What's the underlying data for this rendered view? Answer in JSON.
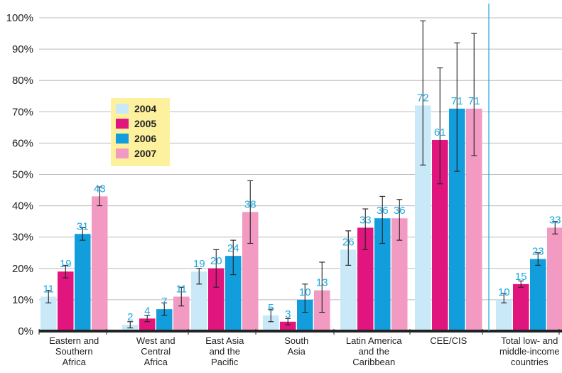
{
  "chart_data": {
    "type": "bar",
    "categories": [
      [
        "Eastern and",
        "Southern",
        "Africa"
      ],
      [
        "West and",
        "Central",
        "Africa"
      ],
      [
        "East Asia",
        "and the",
        "Pacific"
      ],
      [
        "South",
        "Asia"
      ],
      [
        "Latin America",
        "and the",
        "Caribbean"
      ],
      [
        "CEE/CIS"
      ],
      [
        "Total low- and",
        "middle-income",
        "countries"
      ]
    ],
    "series": [
      {
        "name": "2004",
        "color": "#c9e9f8",
        "values": [
          11,
          2,
          19,
          5,
          26,
          72,
          10
        ],
        "err_low": [
          9,
          1,
          15,
          3,
          21,
          53,
          9
        ],
        "err_high": [
          13,
          3,
          20,
          7,
          32,
          99,
          12
        ]
      },
      {
        "name": "2005",
        "color": "#e0157e",
        "values": [
          19,
          4,
          20,
          3,
          33,
          61,
          15
        ],
        "err_low": [
          17,
          3,
          14,
          2,
          26,
          47,
          14
        ],
        "err_high": [
          21,
          5,
          26,
          4,
          39,
          84,
          16
        ]
      },
      {
        "name": "2006",
        "color": "#129ddc",
        "values": [
          31,
          7,
          24,
          10,
          36,
          71,
          23
        ],
        "err_low": [
          29,
          5,
          18,
          6,
          28,
          51,
          21
        ],
        "err_high": [
          33,
          9,
          29,
          15,
          43,
          92,
          25
        ]
      },
      {
        "name": "2007",
        "color": "#f29ac2",
        "values": [
          43,
          11,
          38,
          13,
          36,
          71,
          33
        ],
        "err_low": [
          40,
          8,
          28,
          6,
          29,
          56,
          31
        ],
        "err_high": [
          46,
          14,
          48,
          22,
          42,
          95,
          35
        ]
      }
    ],
    "y_ticks": [
      "0%",
      "10%",
      "20%",
      "30%",
      "40%",
      "50%",
      "60%",
      "70%",
      "80%",
      "90%",
      "100%"
    ],
    "ylim": [
      0,
      100
    ],
    "grid": "horizontal",
    "legend_position": "upper-left",
    "separator_before_last_category": true,
    "colors": {
      "label": "#1aa9e3",
      "axis": "#222222",
      "grid": "#bbbbbb",
      "separator": "#1aa9e3",
      "legend_bg": "#fdf19e"
    }
  }
}
